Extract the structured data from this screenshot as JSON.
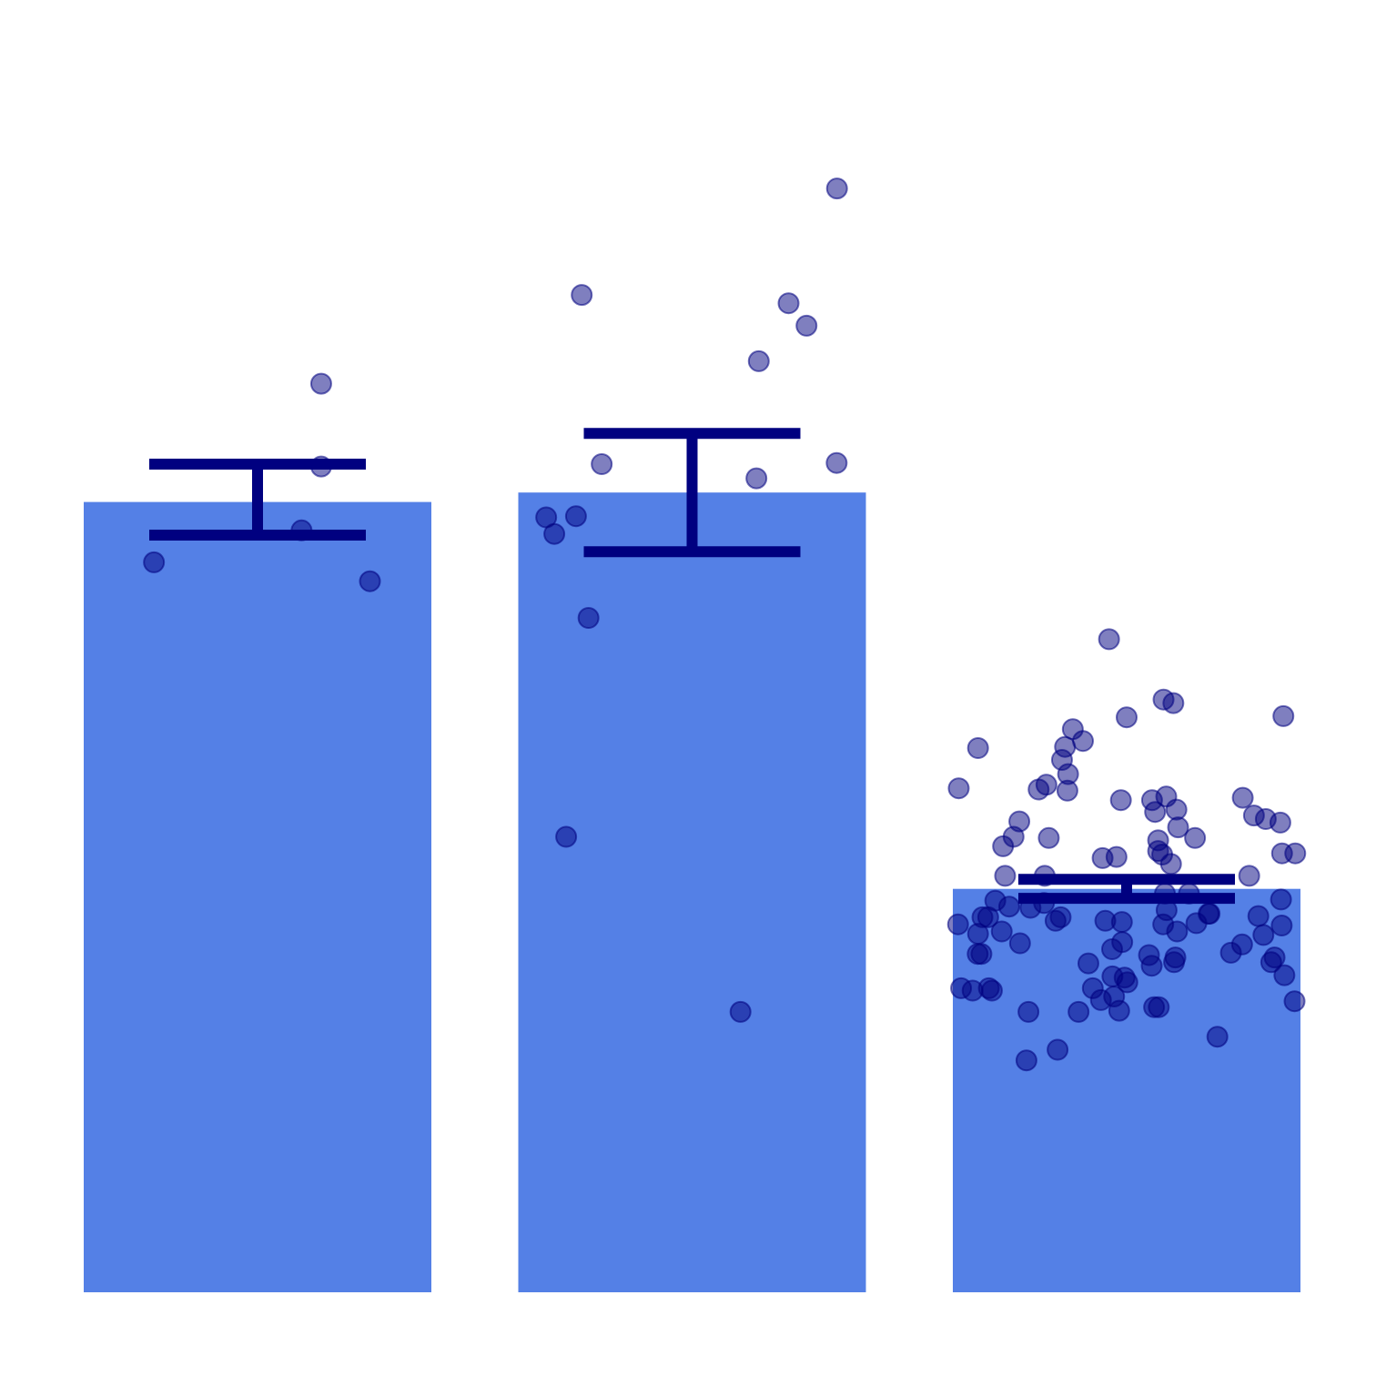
{
  "chart_data": {
    "type": "bar",
    "title": "",
    "xlabel": "",
    "ylabel": "",
    "ylim": [
      0,
      1
    ],
    "grid": false,
    "legend": "none",
    "colors": {
      "bar": "#5480e6",
      "errorbar": "#000080",
      "point": "#000080"
    },
    "bars": [
      {
        "value": 0.668,
        "err_low": 0.64,
        "err_high": 0.7
      },
      {
        "value": 0.676,
        "err_low": 0.626,
        "err_high": 0.726
      },
      {
        "value": 0.341,
        "err_low": 0.333,
        "err_high": 0.349
      }
    ],
    "points": [
      [
        {
          "j": 0.688,
          "y": 0.768
        },
        {
          "j": 0.688,
          "y": 0.698
        },
        {
          "j": 0.63,
          "y": 0.644
        },
        {
          "j": 0.194,
          "y": 0.617
        },
        {
          "j": 0.832,
          "y": 0.601
        }
      ],
      [
        {
          "j": 0.174,
          "y": 0.843
        },
        {
          "j": 0.233,
          "y": 0.7
        },
        {
          "j": 0.069,
          "y": 0.655
        },
        {
          "j": 0.157,
          "y": 0.656
        },
        {
          "j": 0.093,
          "y": 0.641
        },
        {
          "j": 0.194,
          "y": 0.57
        },
        {
          "j": 0.128,
          "y": 0.385
        },
        {
          "j": 0.69,
          "y": 0.688
        },
        {
          "j": 0.697,
          "y": 0.787
        },
        {
          "j": 0.785,
          "y": 0.836
        },
        {
          "j": 0.838,
          "y": 0.817
        },
        {
          "j": 0.928,
          "y": 0.933
        },
        {
          "j": 0.927,
          "y": 0.701
        },
        {
          "j": 0.643,
          "y": 0.237
        }
      ],
      [
        {
          "j": 0.448,
          "y": 0.552
        },
        {
          "j": 0.609,
          "y": 0.501
        },
        {
          "j": 0.638,
          "y": 0.498
        },
        {
          "j": 0.5,
          "y": 0.486
        },
        {
          "j": 0.963,
          "y": 0.487
        },
        {
          "j": 0.341,
          "y": 0.476
        },
        {
          "j": 0.318,
          "y": 0.461
        },
        {
          "j": 0.309,
          "y": 0.45
        },
        {
          "j": 0.371,
          "y": 0.466
        },
        {
          "j": 0.327,
          "y": 0.438
        },
        {
          "j": 0.263,
          "y": 0.429
        },
        {
          "j": 0.325,
          "y": 0.424
        },
        {
          "j": 0.061,
          "y": 0.46
        },
        {
          "j": 0.004,
          "y": 0.426
        },
        {
          "j": 0.24,
          "y": 0.425
        },
        {
          "j": 0.483,
          "y": 0.416
        },
        {
          "j": 0.575,
          "y": 0.416
        },
        {
          "j": 0.617,
          "y": 0.419
        },
        {
          "j": 0.647,
          "y": 0.408
        },
        {
          "j": 0.584,
          "y": 0.406
        },
        {
          "j": 0.652,
          "y": 0.393
        },
        {
          "j": 0.702,
          "y": 0.384
        },
        {
          "j": 0.593,
          "y": 0.382
        },
        {
          "j": 0.593,
          "y": 0.373
        },
        {
          "j": 0.605,
          "y": 0.37
        },
        {
          "j": 0.843,
          "y": 0.418
        },
        {
          "j": 0.876,
          "y": 0.403
        },
        {
          "j": 0.911,
          "y": 0.4
        },
        {
          "j": 0.954,
          "y": 0.397
        },
        {
          "j": 0.959,
          "y": 0.371
        },
        {
          "j": 0.998,
          "y": 0.371
        },
        {
          "j": 0.183,
          "y": 0.398
        },
        {
          "j": 0.166,
          "y": 0.385
        },
        {
          "j": 0.135,
          "y": 0.377
        },
        {
          "j": 0.27,
          "y": 0.384
        },
        {
          "j": 0.429,
          "y": 0.367
        },
        {
          "j": 0.47,
          "y": 0.368
        },
        {
          "j": 0.631,
          "y": 0.362
        },
        {
          "j": 0.141,
          "y": 0.352
        },
        {
          "j": 0.258,
          "y": 0.352
        },
        {
          "j": 0.862,
          "y": 0.352
        },
        {
          "j": 0.613,
          "y": 0.337
        },
        {
          "j": 0.684,
          "y": 0.337
        },
        {
          "j": 0.112,
          "y": 0.331
        },
        {
          "j": 0.256,
          "y": 0.329
        },
        {
          "j": 0.216,
          "y": 0.325
        },
        {
          "j": 0.153,
          "y": 0.326
        },
        {
          "j": 0.956,
          "y": 0.332
        },
        {
          "j": 0.958,
          "y": 0.31
        },
        {
          "j": 0.745,
          "y": 0.32
        },
        {
          "j": 0.486,
          "y": 0.313
        },
        {
          "j": 0.618,
          "y": 0.323
        },
        {
          "j": 0.742,
          "y": 0.32
        },
        {
          "j": 0.074,
          "y": 0.317
        },
        {
          "j": 0.091,
          "y": 0.317
        },
        {
          "j": 0.002,
          "y": 0.311
        },
        {
          "j": 0.061,
          "y": 0.303
        },
        {
          "j": 0.131,
          "y": 0.305
        },
        {
          "j": 0.29,
          "y": 0.314
        },
        {
          "j": 0.305,
          "y": 0.317
        },
        {
          "j": 0.437,
          "y": 0.314
        },
        {
          "j": 0.608,
          "y": 0.311
        },
        {
          "j": 0.706,
          "y": 0.312
        },
        {
          "j": 0.649,
          "y": 0.305
        },
        {
          "j": 0.889,
          "y": 0.318
        },
        {
          "j": 0.904,
          "y": 0.302
        },
        {
          "j": 0.185,
          "y": 0.295
        },
        {
          "j": 0.06,
          "y": 0.286
        },
        {
          "j": 0.487,
          "y": 0.296
        },
        {
          "j": 0.457,
          "y": 0.29
        },
        {
          "j": 0.841,
          "y": 0.294
        },
        {
          "j": 0.071,
          "y": 0.286
        },
        {
          "j": 0.566,
          "y": 0.285
        },
        {
          "j": 0.574,
          "y": 0.276
        },
        {
          "j": 0.644,
          "y": 0.283
        },
        {
          "j": 0.64,
          "y": 0.279
        },
        {
          "j": 0.927,
          "y": 0.279
        },
        {
          "j": 0.808,
          "y": 0.287
        },
        {
          "j": 0.937,
          "y": 0.283
        },
        {
          "j": 0.966,
          "y": 0.268
        },
        {
          "j": 0.387,
          "y": 0.278
        },
        {
          "j": 0.011,
          "y": 0.257
        },
        {
          "j": 0.045,
          "y": 0.255
        },
        {
          "j": 0.093,
          "y": 0.257
        },
        {
          "j": 0.102,
          "y": 0.255
        },
        {
          "j": 0.4,
          "y": 0.257
        },
        {
          "j": 0.458,
          "y": 0.267
        },
        {
          "j": 0.494,
          "y": 0.266
        },
        {
          "j": 0.502,
          "y": 0.262
        },
        {
          "j": 0.424,
          "y": 0.247
        },
        {
          "j": 0.463,
          "y": 0.25
        },
        {
          "j": 0.595,
          "y": 0.241
        },
        {
          "j": 0.581,
          "y": 0.241
        },
        {
          "j": 0.478,
          "y": 0.238
        },
        {
          "j": 0.358,
          "y": 0.237
        },
        {
          "j": 0.996,
          "y": 0.246
        },
        {
          "j": 0.21,
          "y": 0.237
        },
        {
          "j": 0.296,
          "y": 0.205
        },
        {
          "j": 0.204,
          "y": 0.196
        },
        {
          "j": 0.768,
          "y": 0.216
        }
      ]
    ]
  }
}
